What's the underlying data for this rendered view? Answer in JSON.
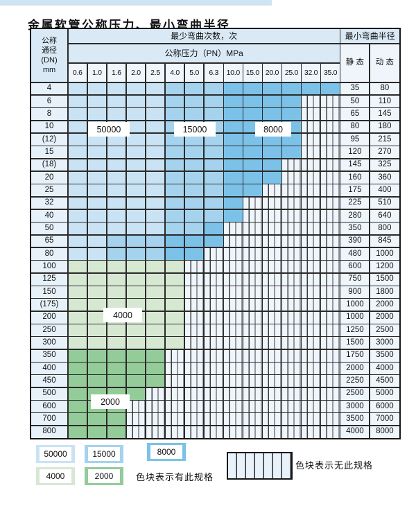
{
  "title": "金属软管公称压力、最小弯曲半径",
  "table": {
    "header": {
      "dn_lines": [
        "公称",
        "通径",
        "(DN)",
        "mm"
      ],
      "bend_cycles": "最少弯曲次数，次",
      "min_bend_radius": "最小弯曲半径",
      "nominal_pressure": "公称压力（PN）MPa",
      "static": "静 态",
      "dynamic": "动 态",
      "pressures": [
        "0.6",
        "1.0",
        "1.6",
        "2.0",
        "2.5",
        "4.0",
        "5.0",
        "6.3",
        "10.0",
        "15.0",
        "20.0",
        "25.0",
        "32.0",
        "35.0"
      ]
    },
    "rows": [
      {
        "dn": "4",
        "cells": [
          "L",
          "L",
          "L",
          "L",
          "L",
          "M",
          "M",
          "M",
          "D",
          "D",
          "D",
          "D",
          "D",
          "D"
        ],
        "static": 35,
        "dynamic": 80
      },
      {
        "dn": "6",
        "cells": [
          "L",
          "L",
          "L",
          "L",
          "L",
          "M",
          "M",
          "M",
          "D",
          "D",
          "D",
          "D",
          "S",
          "S"
        ],
        "static": 50,
        "dynamic": 110
      },
      {
        "dn": "8",
        "cells": [
          "L",
          "L",
          "L",
          "L",
          "L",
          "M",
          "M",
          "M",
          "D",
          "D",
          "D",
          "D",
          "S",
          "S"
        ],
        "static": 65,
        "dynamic": 145
      },
      {
        "dn": "10",
        "cells": [
          "L",
          "L",
          "L",
          "L",
          "L",
          "M",
          "M",
          "M",
          "D",
          "D",
          "D",
          "D",
          "S",
          "S"
        ],
        "static": 80,
        "dynamic": 180
      },
      {
        "dn": "(12)",
        "cells": [
          "L",
          "L",
          "L",
          "L",
          "L",
          "M",
          "M",
          "M",
          "D",
          "D",
          "D",
          "D",
          "S",
          "S"
        ],
        "static": 95,
        "dynamic": 215
      },
      {
        "dn": "15",
        "cells": [
          "L",
          "L",
          "L",
          "L",
          "L",
          "M",
          "M",
          "M",
          "D",
          "D",
          "D",
          "D",
          "S",
          "S"
        ],
        "static": 120,
        "dynamic": 270
      },
      {
        "dn": "(18)",
        "cells": [
          "L",
          "L",
          "L",
          "L",
          "L",
          "M",
          "M",
          "M",
          "D",
          "D",
          "D",
          "S",
          "S",
          "S"
        ],
        "static": 145,
        "dynamic": 325
      },
      {
        "dn": "20",
        "cells": [
          "L",
          "L",
          "L",
          "L",
          "L",
          "M",
          "M",
          "M",
          "D",
          "D",
          "D",
          "S",
          "S",
          "S"
        ],
        "static": 160,
        "dynamic": 360
      },
      {
        "dn": "25",
        "cells": [
          "L",
          "L",
          "L",
          "L",
          "L",
          "M",
          "M",
          "M",
          "D",
          "D",
          "S",
          "S",
          "S",
          "S"
        ],
        "static": 175,
        "dynamic": 400
      },
      {
        "dn": "32",
        "cells": [
          "L",
          "L",
          "L",
          "L",
          "L",
          "M",
          "M",
          "M",
          "D",
          "S",
          "S",
          "S",
          "S",
          "S"
        ],
        "static": 225,
        "dynamic": 510
      },
      {
        "dn": "40",
        "cells": [
          "L",
          "L",
          "L",
          "L",
          "L",
          "M",
          "M",
          "M",
          "D",
          "S",
          "S",
          "S",
          "S",
          "S"
        ],
        "static": 280,
        "dynamic": 640
      },
      {
        "dn": "50",
        "cells": [
          "L",
          "L",
          "L",
          "L",
          "L",
          "M",
          "M",
          "D",
          "S",
          "S",
          "S",
          "S",
          "S",
          "S"
        ],
        "static": 350,
        "dynamic": 800
      },
      {
        "dn": "65",
        "cells": [
          "L",
          "L",
          "M",
          "M",
          "M",
          "D",
          "D",
          "D",
          "S",
          "S",
          "S",
          "S",
          "S",
          "S"
        ],
        "static": 390,
        "dynamic": 845
      },
      {
        "dn": "80",
        "cells": [
          "L",
          "L",
          "M",
          "M",
          "M",
          "D",
          "D",
          "S",
          "S",
          "S",
          "S",
          "S",
          "S",
          "S"
        ],
        "static": 480,
        "dynamic": 1000
      },
      {
        "dn": "100",
        "cells": [
          "F",
          "F",
          "F",
          "F",
          "F",
          "F",
          "S",
          "S",
          "S",
          "S",
          "S",
          "S",
          "S",
          "S"
        ],
        "static": 600,
        "dynamic": 1200
      },
      {
        "dn": "125",
        "cells": [
          "F",
          "F",
          "F",
          "F",
          "F",
          "F",
          "S",
          "S",
          "S",
          "S",
          "S",
          "S",
          "S",
          "S"
        ],
        "static": 750,
        "dynamic": 1500
      },
      {
        "dn": "150",
        "cells": [
          "F",
          "F",
          "F",
          "F",
          "F",
          "F",
          "S",
          "S",
          "S",
          "S",
          "S",
          "S",
          "S",
          "S"
        ],
        "static": 900,
        "dynamic": 1800
      },
      {
        "dn": "(175)",
        "cells": [
          "F",
          "F",
          "F",
          "F",
          "F",
          "F",
          "S",
          "S",
          "S",
          "S",
          "S",
          "S",
          "S",
          "S"
        ],
        "static": 1000,
        "dynamic": 2000
      },
      {
        "dn": "200",
        "cells": [
          "F",
          "F",
          "F",
          "F",
          "F",
          "F",
          "S",
          "S",
          "S",
          "S",
          "S",
          "S",
          "S",
          "S"
        ],
        "static": 1000,
        "dynamic": 2000
      },
      {
        "dn": "250",
        "cells": [
          "F",
          "F",
          "F",
          "F",
          "F",
          "F",
          "S",
          "S",
          "S",
          "S",
          "S",
          "S",
          "S",
          "S"
        ],
        "static": 1250,
        "dynamic": 2500
      },
      {
        "dn": "300",
        "cells": [
          "F",
          "F",
          "F",
          "F",
          "F",
          "F",
          "S",
          "S",
          "S",
          "S",
          "S",
          "S",
          "S",
          "S"
        ],
        "static": 1500,
        "dynamic": 3000
      },
      {
        "dn": "350",
        "cells": [
          "T",
          "T",
          "T",
          "T",
          "T",
          "S",
          "S",
          "S",
          "S",
          "S",
          "S",
          "S",
          "S",
          "S"
        ],
        "static": 1750,
        "dynamic": 3500
      },
      {
        "dn": "400",
        "cells": [
          "T",
          "T",
          "T",
          "T",
          "T",
          "S",
          "S",
          "S",
          "S",
          "S",
          "S",
          "S",
          "S",
          "S"
        ],
        "static": 2000,
        "dynamic": 4000
      },
      {
        "dn": "450",
        "cells": [
          "T",
          "T",
          "T",
          "T",
          "T",
          "S",
          "S",
          "S",
          "S",
          "S",
          "S",
          "S",
          "S",
          "S"
        ],
        "static": 2250,
        "dynamic": 4500
      },
      {
        "dn": "500",
        "cells": [
          "T",
          "T",
          "T",
          "T",
          "S",
          "S",
          "S",
          "S",
          "S",
          "S",
          "S",
          "S",
          "S",
          "S"
        ],
        "static": 2500,
        "dynamic": 5000
      },
      {
        "dn": "600",
        "cells": [
          "T",
          "T",
          "T",
          "S",
          "S",
          "S",
          "S",
          "S",
          "S",
          "S",
          "S",
          "S",
          "S",
          "S"
        ],
        "static": 3000,
        "dynamic": 6000
      },
      {
        "dn": "700",
        "cells": [
          "T",
          "T",
          "T",
          "S",
          "S",
          "S",
          "S",
          "S",
          "S",
          "S",
          "S",
          "S",
          "S",
          "S"
        ],
        "static": 3500,
        "dynamic": 7000
      },
      {
        "dn": "800",
        "cells": [
          "T",
          "T",
          "T",
          "S",
          "S",
          "S",
          "S",
          "S",
          "S",
          "S",
          "S",
          "S",
          "S",
          "S"
        ],
        "static": 4000,
        "dynamic": 8000
      }
    ]
  },
  "cell_zone_codes": {
    "L": "50000",
    "M": "15000",
    "D": "8000",
    "F": "4000",
    "T": "2000",
    "S": "none"
  },
  "zone_colors": {
    "50000": "#c9e3f4",
    "15000": "#a5d3ee",
    "8000": "#7cc2e8",
    "4000": "#d7e8d2",
    "2000": "#93cc98"
  },
  "overlays": [
    {
      "text": "50000"
    },
    {
      "text": "15000"
    },
    {
      "text": "8000"
    },
    {
      "text": "4000"
    },
    {
      "text": "2000"
    }
  ],
  "legend": {
    "items": [
      {
        "label": "50000"
      },
      {
        "label": "15000"
      },
      {
        "label": "8000"
      },
      {
        "label": "4000"
      },
      {
        "label": "2000"
      }
    ],
    "has_spec_text": "色块表示有此规格",
    "no_spec_text": "色块表示无此规格"
  }
}
